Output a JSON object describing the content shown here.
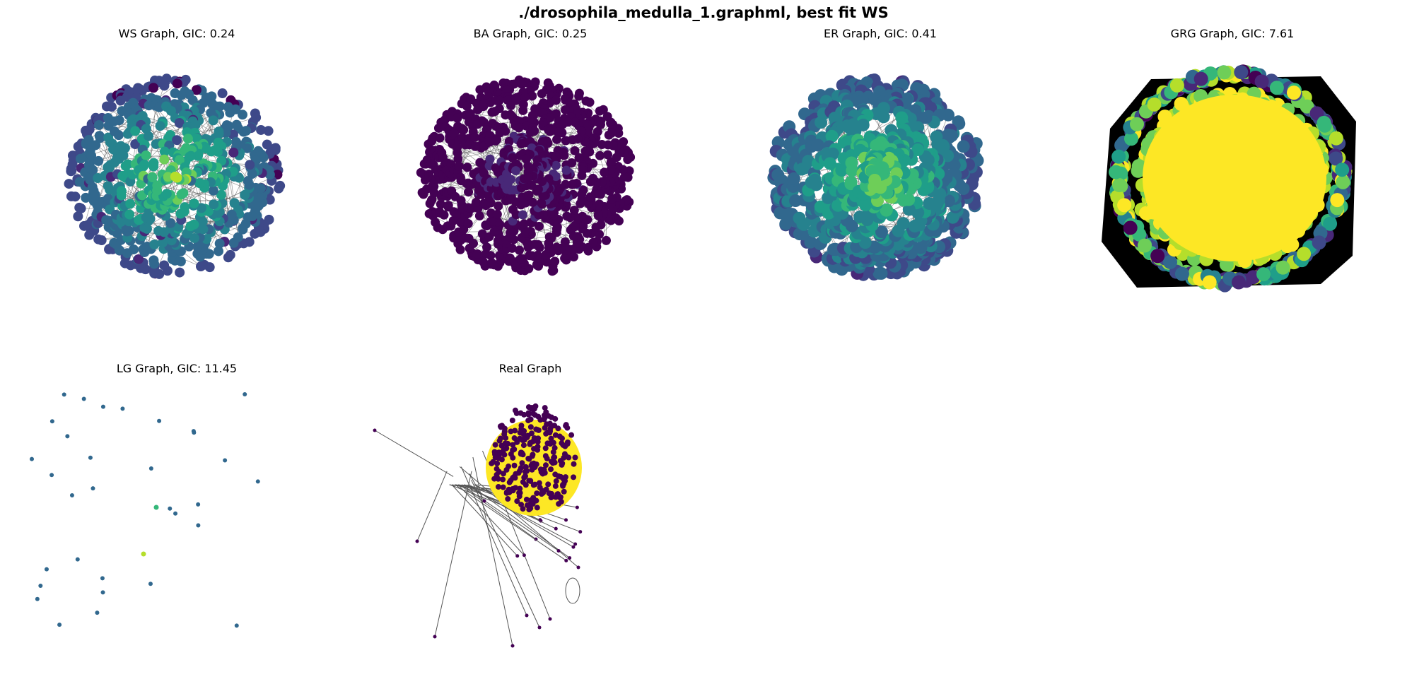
{
  "figure": {
    "suptitle": "./drosophila_medulla_1.graphml, best fit WS"
  },
  "panels": [
    {
      "title": "WS Graph, GIC: 0.24",
      "style": "ws"
    },
    {
      "title": "BA Graph, GIC: 0.25",
      "style": "ba"
    },
    {
      "title": "ER Graph, GIC: 0.41",
      "style": "er"
    },
    {
      "title": "GRG Graph, GIC: 7.61",
      "style": "grg"
    },
    {
      "title": "LG Graph, GIC: 11.45",
      "style": "lg"
    },
    {
      "title": "Real Graph",
      "style": "real"
    }
  ],
  "colormap": "viridis",
  "colors": {
    "node_low": "#440154",
    "node_mid": "#21918c",
    "node_high": "#fde725",
    "edge": "#555555"
  }
}
